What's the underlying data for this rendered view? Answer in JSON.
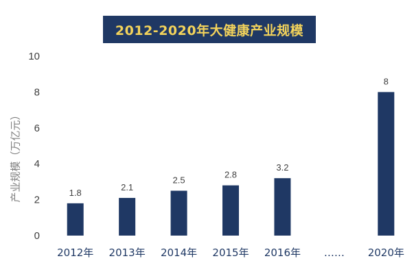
{
  "chart_data": {
    "type": "bar",
    "title": "2012-2020年大健康产业规模",
    "xlabel": "",
    "ylabel": "产业规模（万亿元）",
    "categories": [
      "2012年",
      "2013年",
      "2014年",
      "2015年",
      "2016年",
      "……",
      "2020年"
    ],
    "values": [
      1.8,
      2.1,
      2.5,
      2.8,
      3.2,
      null,
      8
    ],
    "data_labels": [
      "1.8",
      "2.1",
      "2.5",
      "2.8",
      "3.2",
      "",
      "8"
    ],
    "ylim": [
      0,
      10
    ],
    "yticks": [
      "0",
      "2",
      "4",
      "6",
      "8",
      "10"
    ],
    "grid": false,
    "legend": "none",
    "colors": {
      "bar": "#1f3864",
      "title_bg": "#1f3864",
      "title_text": "#f3d35b",
      "axis_text": "#404040"
    }
  }
}
